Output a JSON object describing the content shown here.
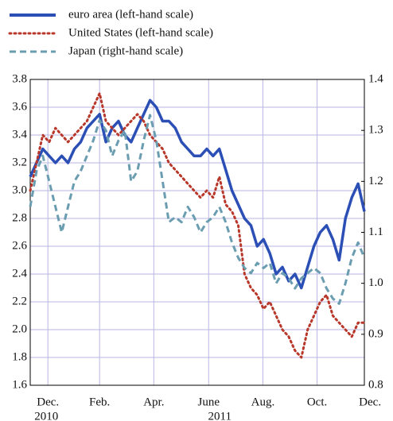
{
  "chart_data": {
    "type": "line",
    "series": [
      {
        "name": "euro area (left-hand scale)",
        "color": "#2b4fb5",
        "style": "solid",
        "values": [
          3.1,
          3.2,
          3.3,
          3.25,
          3.2,
          3.25,
          3.2,
          3.3,
          3.35,
          3.45,
          3.5,
          3.55,
          3.35,
          3.45,
          3.5,
          3.4,
          3.35,
          3.45,
          3.55,
          3.65,
          3.6,
          3.5,
          3.5,
          3.45,
          3.35,
          3.3,
          3.25,
          3.25,
          3.3,
          3.25,
          3.3,
          3.15,
          3.0,
          2.9,
          2.8,
          2.75,
          2.6,
          2.65,
          2.55,
          2.4,
          2.45,
          2.35,
          2.4,
          2.3,
          2.45,
          2.6,
          2.7,
          2.75,
          2.65,
          2.5,
          2.8,
          2.95,
          3.05,
          2.85
        ]
      },
      {
        "name": "United States (left-hand scale)",
        "color": "#b8392b",
        "style": "dotted",
        "values": [
          3.0,
          3.2,
          3.4,
          3.35,
          3.45,
          3.4,
          3.35,
          3.4,
          3.45,
          3.5,
          3.6,
          3.7,
          3.5,
          3.45,
          3.4,
          3.45,
          3.5,
          3.55,
          3.5,
          3.4,
          3.35,
          3.3,
          3.2,
          3.15,
          3.1,
          3.05,
          3.0,
          2.95,
          3.0,
          2.95,
          3.1,
          2.9,
          2.85,
          2.75,
          2.4,
          2.3,
          2.25,
          2.15,
          2.2,
          2.1,
          2.0,
          1.95,
          1.85,
          1.8,
          2.0,
          2.1,
          2.2,
          2.25,
          2.1,
          2.05,
          2.0,
          1.95,
          2.05,
          2.05
        ]
      },
      {
        "name": "Japan (right-hand scale)",
        "color": "#6b9db1",
        "style": "dashed",
        "axis": "y2",
        "values": [
          1.15,
          1.22,
          1.25,
          1.2,
          1.15,
          1.1,
          1.15,
          1.2,
          1.22,
          1.25,
          1.28,
          1.32,
          1.3,
          1.25,
          1.28,
          1.3,
          1.2,
          1.22,
          1.28,
          1.33,
          1.28,
          1.2,
          1.12,
          1.13,
          1.12,
          1.15,
          1.13,
          1.1,
          1.12,
          1.13,
          1.15,
          1.12,
          1.08,
          1.05,
          1.03,
          1.02,
          1.04,
          1.03,
          1.04,
          1.0,
          1.02,
          1.01,
          0.99,
          1.01,
          1.02,
          1.03,
          1.02,
          0.99,
          0.97,
          0.96,
          1.0,
          1.05,
          1.08,
          1.05
        ]
      }
    ],
    "xlim": [
      0,
      53
    ],
    "xticks": [
      {
        "value": 2.8,
        "label": "Dec."
      },
      {
        "value": 11.0,
        "label": "Feb."
      },
      {
        "value": 19.6,
        "label": "Apr."
      },
      {
        "value": 28.3,
        "label": "June"
      },
      {
        "value": 36.9,
        "label": "Aug."
      },
      {
        "value": 45.5,
        "label": "Oct."
      },
      {
        "value": 53.9,
        "label": "Dec."
      }
    ],
    "annotations": [
      "2010",
      "2011"
    ],
    "ylim": [
      1.6,
      3.8
    ],
    "yticks": [
      1.6,
      1.8,
      {
        "value": 2,
        "label": "2.0"
      },
      2.2,
      2.4,
      2.6,
      2.8,
      {
        "value": 3,
        "label": "3.0"
      },
      3.2,
      3.4,
      3.6,
      3.8
    ],
    "y2lim": [
      0.8,
      1.4
    ],
    "y2ticks": [
      0.8,
      0.9,
      {
        "value": 1,
        "label": "1.0"
      },
      1.1,
      1.2,
      1.3,
      1.4
    ],
    "grid": true,
    "legend": "top-left"
  }
}
